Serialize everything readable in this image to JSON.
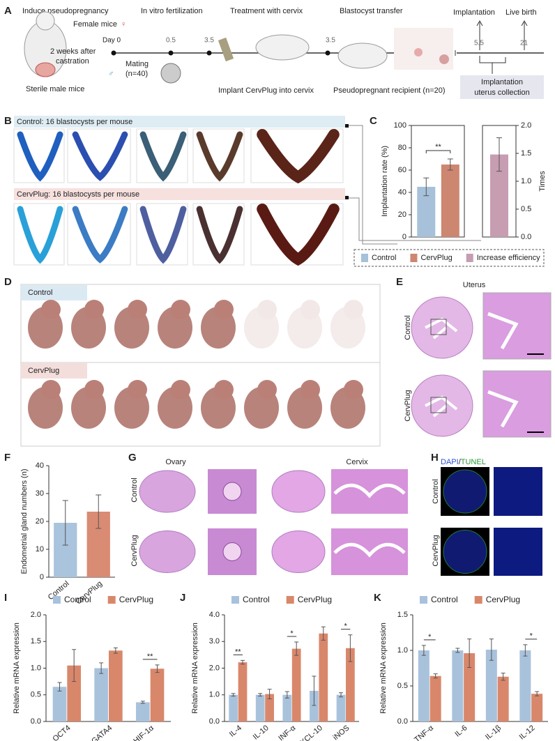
{
  "panel_labels": [
    "A",
    "B",
    "C",
    "D",
    "E",
    "F",
    "G",
    "H",
    "I",
    "J",
    "K"
  ],
  "panel_a": {
    "induce": "Induce pseudopregnancy",
    "female": "Female mice",
    "day0": "Day 0",
    "castration": [
      "2 weeks after",
      "castration"
    ],
    "male": "Sterile male mice",
    "ivf": "In vitro fertilization",
    "mating": [
      "Mating",
      "(n=40)"
    ],
    "t05": "0.5",
    "t35a": "3.5",
    "treatment": "Treatment with cervix",
    "implant": "Implant CervPlug into cervix",
    "transfer": "Blastocyst transfer",
    "t35b": "3.5",
    "recipient": "Pseudopregnant recipient (n=20)",
    "implantation": "Implantation",
    "birth": "Live birth",
    "t55": "5.5",
    "t21": "21",
    "collection": [
      "Implantation",
      "uterus collection"
    ]
  },
  "panel_b": {
    "control": "Control: 16 blastocysts per mouse",
    "cervplug": "CervPlug: 16 blastocysts per mouse"
  },
  "panel_d": {
    "control": "Control",
    "cervplug": "CervPlug"
  },
  "panel_e": {
    "title": "Uterus",
    "rows": [
      "Control",
      "CervPlug"
    ]
  },
  "panel_g": {
    "columns": [
      "Ovary",
      "Cervix"
    ],
    "rows": [
      "Control",
      "CervPlug"
    ]
  },
  "panel_h": {
    "title": [
      "DAPI",
      "/",
      "TUNEL"
    ],
    "rows": [
      "Control",
      "CervPlug"
    ]
  },
  "chart_data": [
    {
      "type": "bar",
      "ylabel": "Implantation rate (%)",
      "y2label": "Times",
      "ylim": [
        0,
        100
      ],
      "yticks": [
        0,
        20,
        40,
        60,
        80,
        100
      ],
      "y2lim": [
        0,
        2
      ],
      "y2ticks": [
        {
          "value": 0,
          "label": "0.0"
        },
        {
          "value": 0.5,
          "label": "0.5"
        },
        {
          "value": 1,
          "label": "1.0"
        },
        {
          "value": 1.5,
          "label": "1.5"
        },
        {
          "value": 2,
          "label": "2.0"
        }
      ],
      "significance": "**",
      "legend": "bottom",
      "series": [
        {
          "name": "Control",
          "color": "#a6c1d9",
          "values": [
            45
          ],
          "errors": [
            8
          ]
        },
        {
          "name": "CervPlug",
          "color": "#cd8670",
          "values": [
            65
          ],
          "errors": [
            5
          ]
        },
        {
          "name": "Increase efficiency",
          "color": "#c79db2",
          "values": [
            1.48
          ],
          "errors": [
            0.3
          ],
          "axis": "y2"
        }
      ]
    },
    {
      "type": "bar",
      "ylabel": "Endometrial gland numbers (n)",
      "ylim": [
        0,
        40
      ],
      "yticks": [
        0,
        10,
        20,
        30,
        40
      ],
      "categories": [
        "Control",
        "CervPlug"
      ],
      "values": [
        19.5,
        23.5
      ],
      "errors": [
        8,
        6
      ],
      "colors": [
        "#a9c4dc",
        "#d98b73"
      ]
    },
    {
      "type": "grouped-bar",
      "ylabel": "Relative mRNA expression",
      "ylim": [
        0,
        2
      ],
      "yticks": [
        {
          "value": 0,
          "label": "0.0"
        },
        {
          "value": 0.5,
          "label": "0.5"
        },
        {
          "value": 1,
          "label": "1.0"
        },
        {
          "value": 1.5,
          "label": "1.5"
        },
        {
          "value": 2,
          "label": "2.0"
        }
      ],
      "categories": [
        "OCT4",
        "GATA4",
        "HIF-1α"
      ],
      "significance": [
        null,
        null,
        "**"
      ],
      "legend": "top",
      "series": [
        {
          "name": "Control",
          "color": "#a9c2dc",
          "values": [
            0.65,
            1.0,
            0.36
          ],
          "errors": [
            0.08,
            0.1,
            0.02
          ]
        },
        {
          "name": "CervPlug",
          "color": "#d9876b",
          "values": [
            1.05,
            1.33,
            0.99
          ],
          "errors": [
            0.3,
            0.05,
            0.07
          ]
        }
      ]
    },
    {
      "type": "grouped-bar",
      "ylabel": "Relative mRNA expression",
      "ylim": [
        0,
        4
      ],
      "yticks": [
        {
          "value": 0,
          "label": "0.0"
        },
        {
          "value": 1,
          "label": "1.0"
        },
        {
          "value": 2,
          "label": "2.0"
        },
        {
          "value": 3,
          "label": "3.0"
        },
        {
          "value": 4,
          "label": "4.0"
        }
      ],
      "categories": [
        "IL-4",
        "IL-10",
        "INF-α",
        "CXCL-10",
        "iNOS"
      ],
      "significance": [
        "**",
        null,
        "*",
        null,
        "*"
      ],
      "legend": "top",
      "series": [
        {
          "name": "Control",
          "color": "#a9c2dc",
          "values": [
            1.0,
            1.0,
            1.0,
            1.15,
            1.0
          ],
          "errors": [
            0.05,
            0.05,
            0.12,
            0.55,
            0.08
          ]
        },
        {
          "name": "CervPlug",
          "color": "#d9876b",
          "values": [
            2.22,
            1.03,
            2.73,
            3.3,
            2.75
          ],
          "errors": [
            0.07,
            0.18,
            0.25,
            0.25,
            0.5
          ]
        }
      ]
    },
    {
      "type": "grouped-bar",
      "ylabel": "Relative mRNA expression",
      "ylim": [
        0,
        1.5
      ],
      "yticks": [
        {
          "value": 0,
          "label": "0.0"
        },
        {
          "value": 0.5,
          "label": "0.5"
        },
        {
          "value": 1,
          "label": "1.0"
        },
        {
          "value": 1.5,
          "label": "1.5"
        }
      ],
      "categories": [
        "TNF-α",
        "IL-6",
        "IL-1β",
        "IL-12"
      ],
      "significance": [
        "*",
        null,
        null,
        "*"
      ],
      "legend": "top",
      "series": [
        {
          "name": "Control",
          "color": "#a9c2dc",
          "values": [
            1.0,
            1.0,
            1.01,
            1.0
          ],
          "errors": [
            0.07,
            0.03,
            0.15,
            0.08
          ]
        },
        {
          "name": "CervPlug",
          "color": "#d9876b",
          "values": [
            0.64,
            0.96,
            0.63,
            0.39
          ],
          "errors": [
            0.03,
            0.2,
            0.05,
            0.03
          ]
        }
      ]
    }
  ]
}
